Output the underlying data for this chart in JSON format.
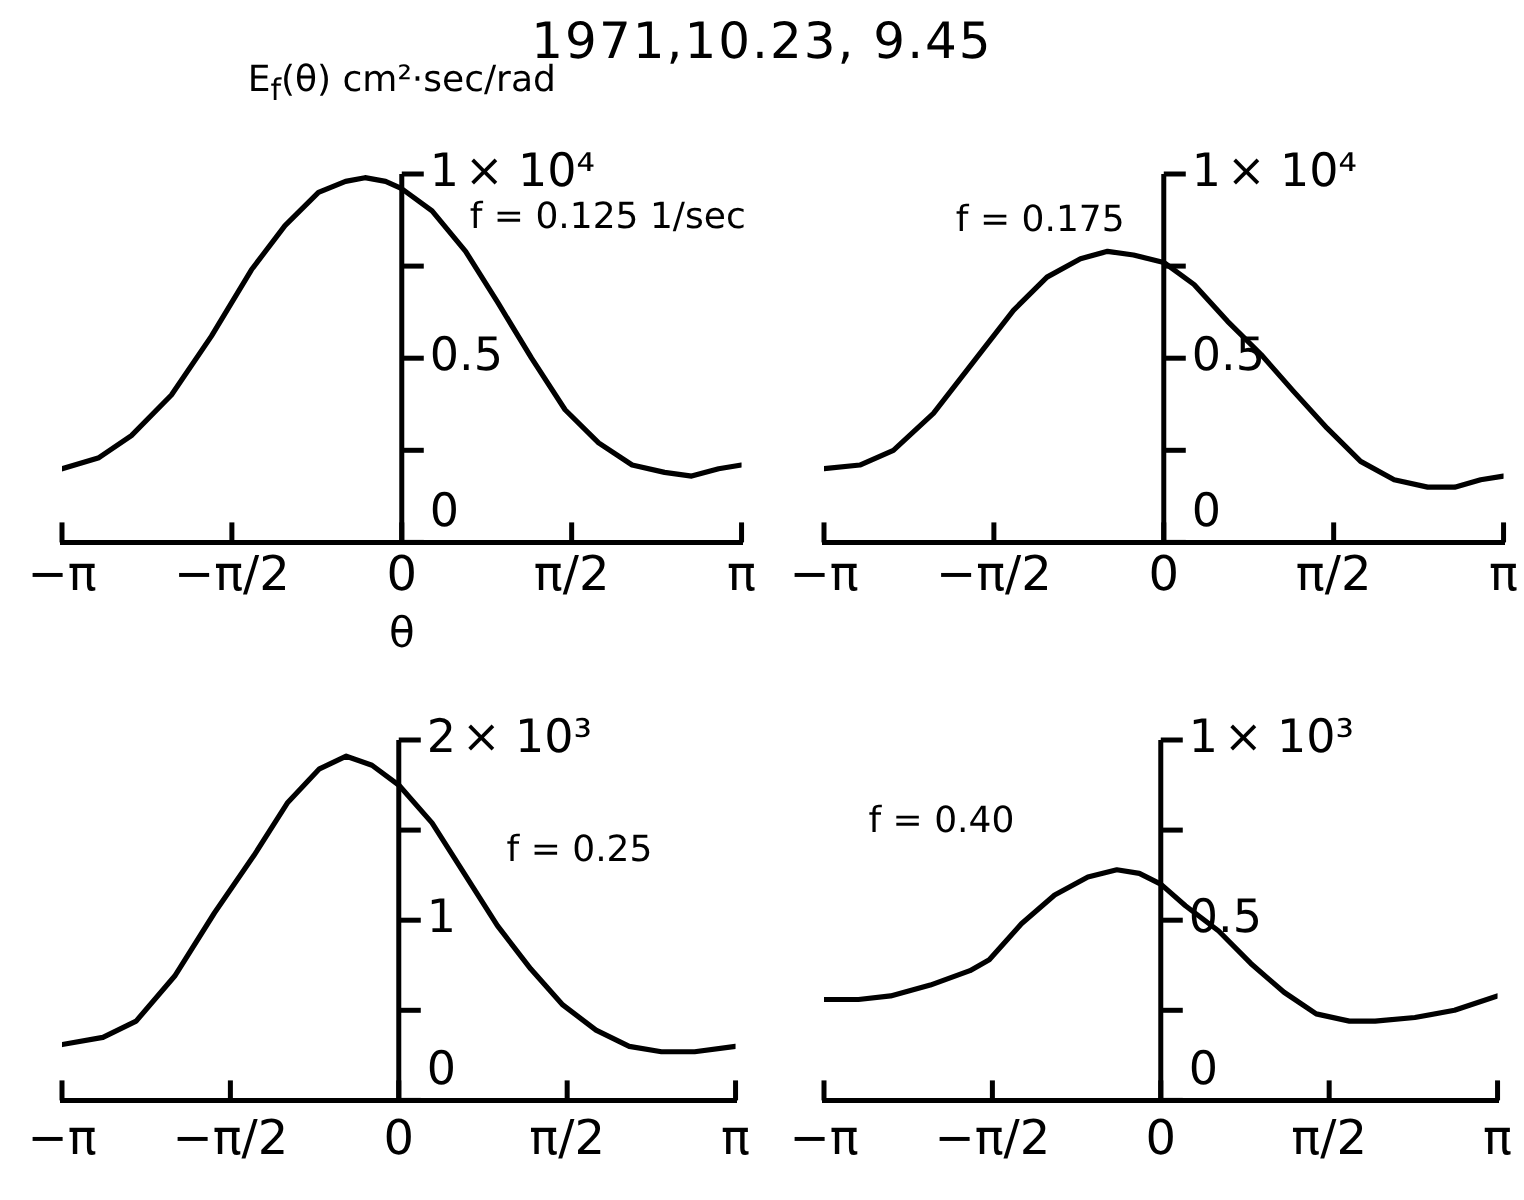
{
  "chart_data": [
    {
      "type": "line",
      "title": "1971,10.23, 9.45",
      "ylabel": "E$_{f}$(θ) cm²·sec/rad",
      "xlabel": "θ",
      "annotations": [
        "f = 0.125 1/sec",
        "× 10⁴"
      ],
      "marker": "none",
      "line_style": "solid",
      "x": [
        -3.14,
        -2.8,
        -2.5,
        -2.13,
        -1.76,
        -1.39,
        -1.08,
        -0.77,
        -0.52,
        -0.34,
        -0.15,
        0,
        0.28,
        0.59,
        0.89,
        1.2,
        1.51,
        1.82,
        2.13,
        2.43,
        2.68,
        2.93,
        3.14
      ],
      "series": [
        {
          "color": "#000000",
          "values": [
            0.2,
            0.23,
            0.29,
            0.4,
            0.56,
            0.74,
            0.86,
            0.95,
            0.98,
            0.99,
            0.98,
            0.96,
            0.9,
            0.79,
            0.65,
            0.5,
            0.36,
            0.27,
            0.21,
            0.19,
            0.18,
            0.2,
            0.21
          ]
        }
      ],
      "xlim": [
        -3.1416,
        3.1416
      ],
      "xticks": [
        {
          "value": -3.1416,
          "label": "−π"
        },
        {
          "value": -1.5708,
          "label": "−π/2"
        },
        {
          "value": 0,
          "label": "0"
        },
        {
          "value": 1.5708,
          "label": "π/2"
        },
        {
          "value": 3.1416,
          "label": "π"
        }
      ],
      "ylim": [
        0,
        1
      ],
      "yticks": [
        0,
        {
          "value": 0.25,
          "label": null
        },
        0.5,
        {
          "value": 0.75,
          "label": null
        },
        1
      ]
    },
    {
      "type": "line",
      "annotations": [
        "f = 0.175",
        "× 10⁴"
      ],
      "marker": "none",
      "line_style": "solid",
      "x": [
        -3.14,
        -2.81,
        -2.5,
        -2.13,
        -1.76,
        -1.39,
        -1.08,
        -0.77,
        -0.52,
        -0.28,
        0,
        0.28,
        0.59,
        0.9,
        1.2,
        1.51,
        1.82,
        2.13,
        2.44,
        2.69,
        2.93,
        3.14
      ],
      "series": [
        {
          "color": "#000000",
          "values": [
            0.2,
            0.21,
            0.25,
            0.35,
            0.49,
            0.63,
            0.72,
            0.77,
            0.79,
            0.78,
            0.76,
            0.7,
            0.6,
            0.51,
            0.41,
            0.31,
            0.22,
            0.17,
            0.15,
            0.15,
            0.17,
            0.18
          ]
        }
      ],
      "xlim": [
        -3.1416,
        3.1416
      ],
      "xticks": [
        {
          "value": -3.1416,
          "label": "−π"
        },
        {
          "value": -1.5708,
          "label": "−π/2"
        },
        {
          "value": 0,
          "label": "0"
        },
        {
          "value": 1.5708,
          "label": "π/2"
        },
        {
          "value": 3.1416,
          "label": "π"
        }
      ],
      "ylim": [
        0,
        1
      ],
      "yticks": [
        0,
        {
          "value": 0.25,
          "label": null
        },
        0.5,
        {
          "value": 0.75,
          "label": null
        },
        1
      ]
    },
    {
      "type": "line",
      "annotations": [
        "f = 0.25",
        "× 10³"
      ],
      "marker": "none",
      "line_style": "solid",
      "x": [
        -3.14,
        -2.76,
        -2.45,
        -2.09,
        -1.72,
        -1.35,
        -1.04,
        -0.74,
        -0.49,
        -0.25,
        0,
        0.31,
        0.61,
        0.92,
        1.23,
        1.53,
        1.84,
        2.15,
        2.45,
        2.76,
        3.14
      ],
      "series": [
        {
          "color": "#000000",
          "values": [
            0.31,
            0.35,
            0.44,
            0.69,
            1.04,
            1.36,
            1.65,
            1.84,
            1.91,
            1.86,
            1.75,
            1.54,
            1.26,
            0.97,
            0.73,
            0.53,
            0.39,
            0.3,
            0.27,
            0.27,
            0.3
          ]
        }
      ],
      "xlim": [
        -3.1416,
        3.1416
      ],
      "xticks": [
        {
          "value": -3.1416,
          "label": "−π"
        },
        {
          "value": -1.5708,
          "label": "−π/2"
        },
        {
          "value": 0,
          "label": "0"
        },
        {
          "value": 1.5708,
          "label": "π/2"
        },
        {
          "value": 3.1416,
          "label": "π"
        }
      ],
      "ylim": [
        0,
        2
      ],
      "yticks": [
        0,
        {
          "value": 0.5,
          "label": null
        },
        1,
        {
          "value": 1.5,
          "label": null
        },
        2
      ]
    },
    {
      "type": "line",
      "annotations": [
        "f = 0.40",
        "× 10³"
      ],
      "marker": "none",
      "line_style": "solid",
      "x": [
        -3.14,
        -2.82,
        -2.52,
        -2.15,
        -1.78,
        -1.6,
        -1.3,
        -0.99,
        -0.68,
        -0.41,
        -0.2,
        0,
        0.23,
        0.54,
        0.84,
        1.15,
        1.45,
        1.76,
        2,
        2.37,
        2.74,
        3.14
      ],
      "series": [
        {
          "color": "#000000",
          "values": [
            0.28,
            0.28,
            0.29,
            0.32,
            0.36,
            0.39,
            0.49,
            0.57,
            0.62,
            0.64,
            0.63,
            0.6,
            0.54,
            0.47,
            0.38,
            0.3,
            0.24,
            0.22,
            0.22,
            0.23,
            0.25,
            0.29
          ]
        }
      ],
      "xlim": [
        -3.1416,
        3.1416
      ],
      "xticks": [
        {
          "value": -3.1416,
          "label": "−π"
        },
        {
          "value": -1.5708,
          "label": "−π/2"
        },
        {
          "value": 0,
          "label": "0"
        },
        {
          "value": 1.5708,
          "label": "π/2"
        },
        {
          "value": 3.1416,
          "label": "π"
        }
      ],
      "ylim": [
        0,
        1
      ],
      "yticks": [
        0,
        {
          "value": 0.25,
          "label": null
        },
        0.5,
        {
          "value": 0.75,
          "label": null
        },
        1
      ]
    }
  ]
}
